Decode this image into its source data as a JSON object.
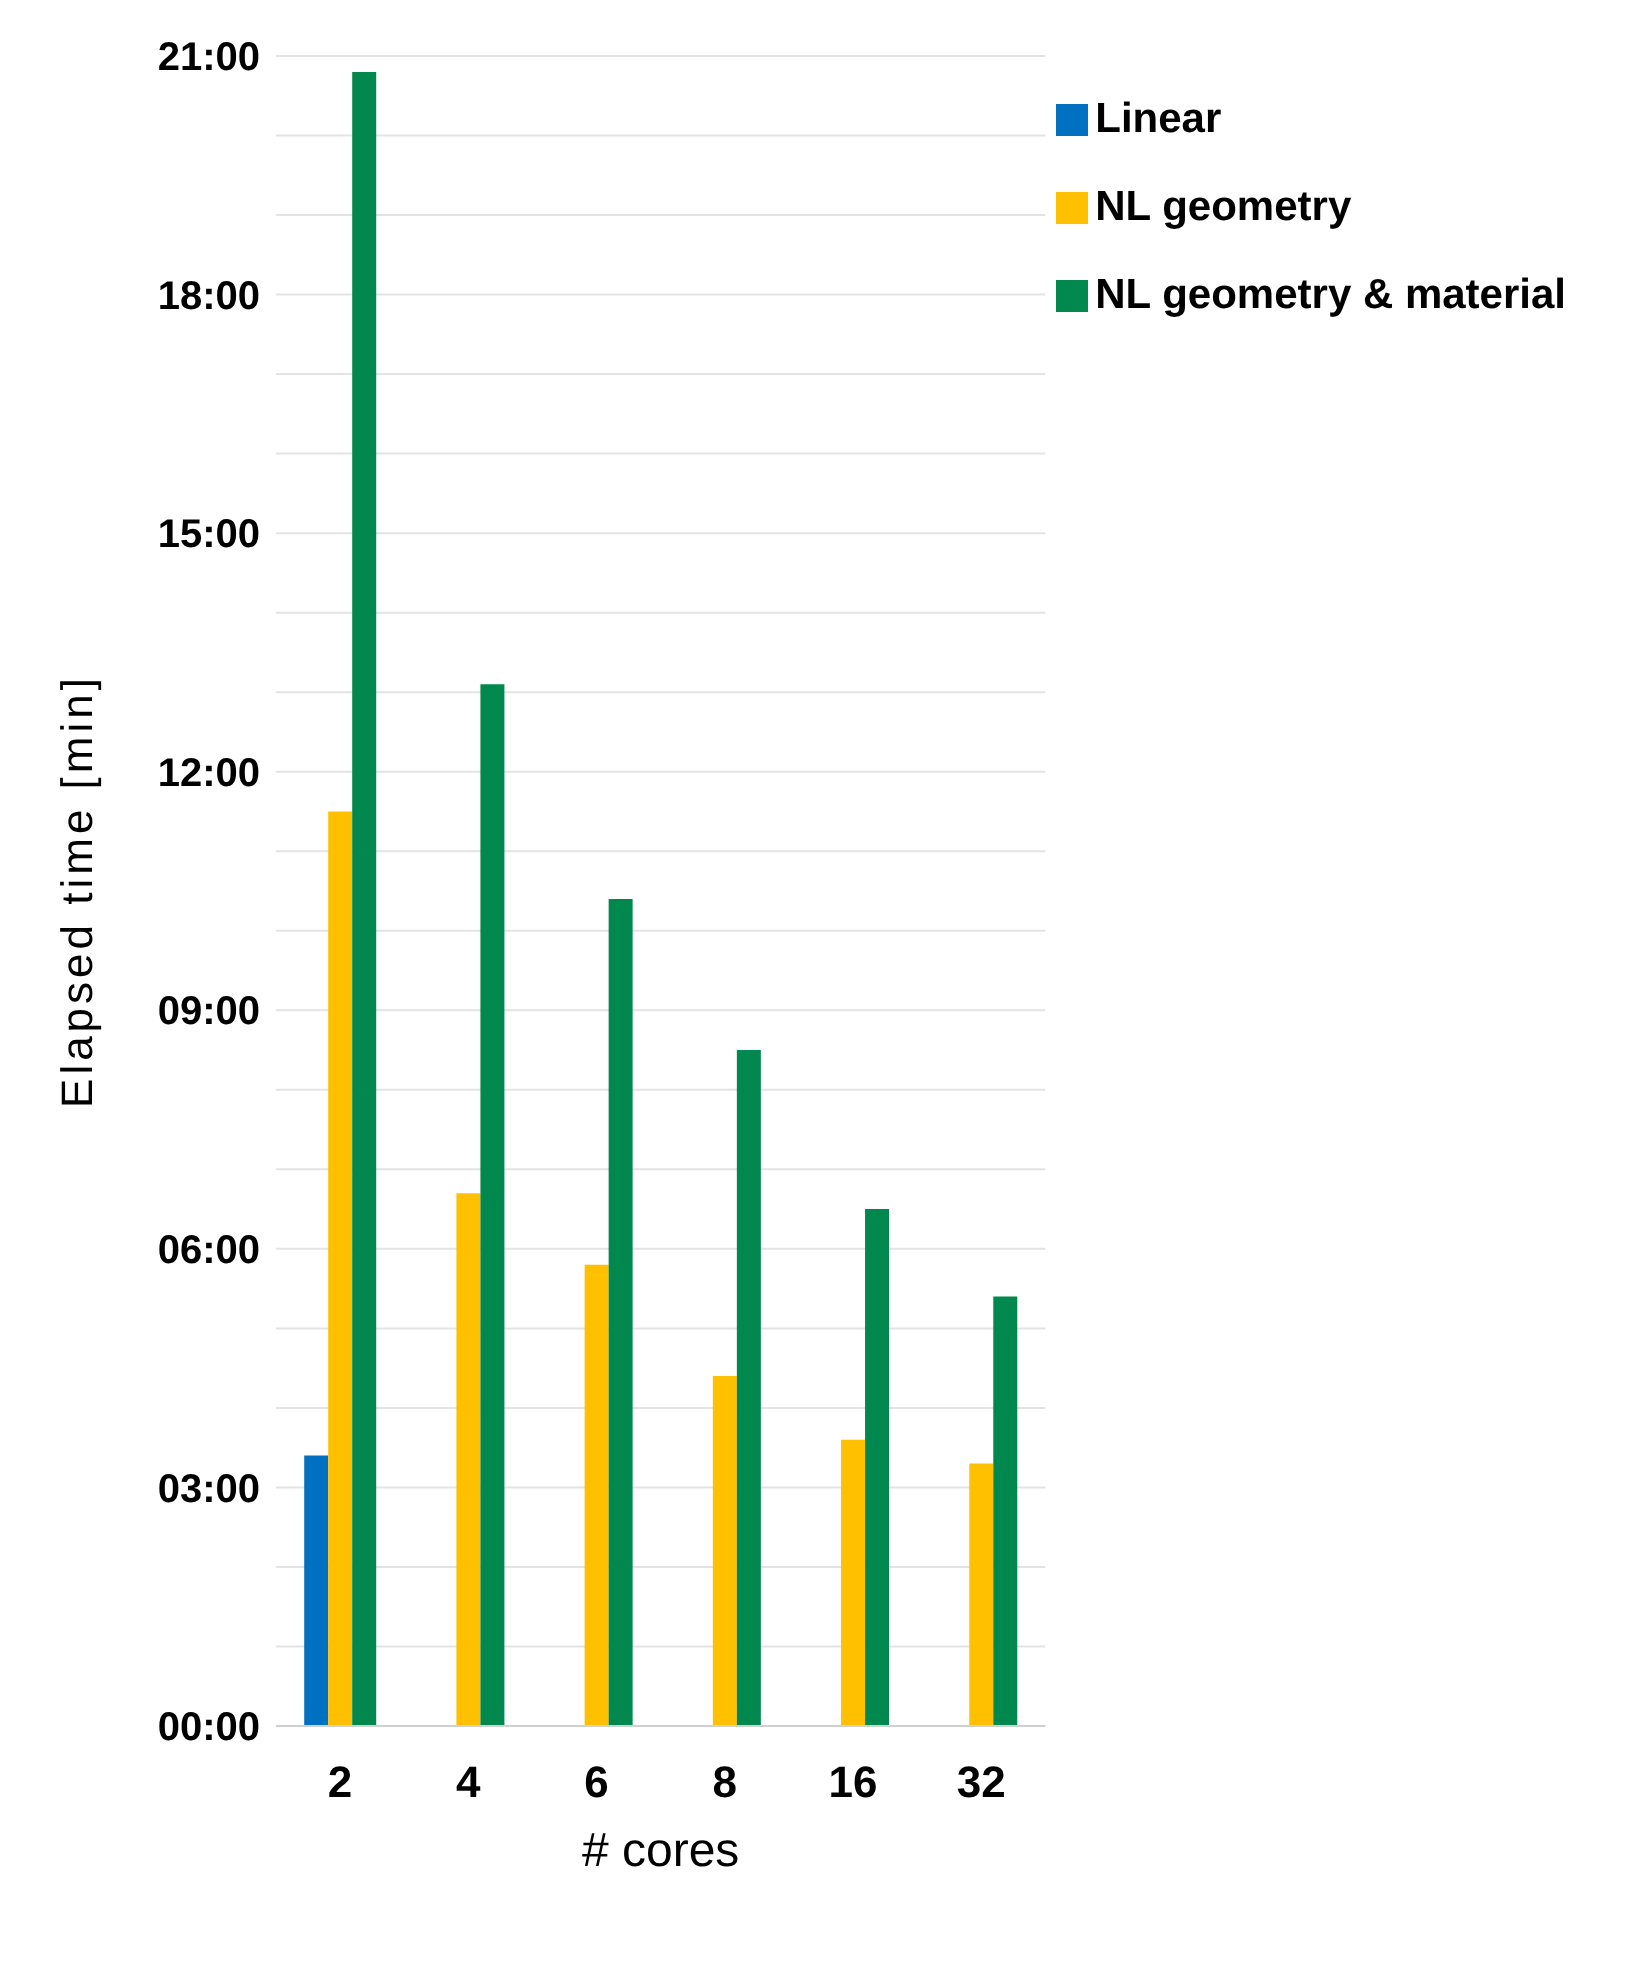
{
  "chart_data": {
    "type": "bar",
    "xlabel": "# cores",
    "ylabel": "Elapsed time [min]",
    "categories": [
      "2",
      "4",
      "6",
      "8",
      "16",
      "32"
    ],
    "series": [
      {
        "name": "Linear",
        "color": "#0070c0",
        "values": [
          3.4,
          null,
          null,
          null,
          null,
          null
        ]
      },
      {
        "name": "NL geometry",
        "color": "#ffc000",
        "values": [
          11.5,
          6.7,
          5.8,
          4.4,
          3.6,
          3.3
        ]
      },
      {
        "name": "NL geometry & material",
        "color": "#00884f",
        "values": [
          20.8,
          13.1,
          10.4,
          8.5,
          6.5,
          5.4
        ]
      }
    ],
    "ylim": [
      0,
      21
    ],
    "yticks": [
      {
        "value": 0,
        "label": "00:00"
      },
      {
        "value": 1,
        "label": null
      },
      {
        "value": 2,
        "label": null
      },
      {
        "value": 3,
        "label": "03:00"
      },
      {
        "value": 4,
        "label": null
      },
      {
        "value": 5,
        "label": null
      },
      {
        "value": 6,
        "label": "06:00"
      },
      {
        "value": 7,
        "label": null
      },
      {
        "value": 8,
        "label": null
      },
      {
        "value": 9,
        "label": "09:00"
      },
      {
        "value": 10,
        "label": null
      },
      {
        "value": 11,
        "label": null
      },
      {
        "value": 12,
        "label": "12:00"
      },
      {
        "value": 13,
        "label": null
      },
      {
        "value": 14,
        "label": null
      },
      {
        "value": 15,
        "label": "15:00"
      },
      {
        "value": 16,
        "label": null
      },
      {
        "value": 17,
        "label": null
      },
      {
        "value": 18,
        "label": "18:00"
      },
      {
        "value": 19,
        "label": null
      },
      {
        "value": 20,
        "label": null
      },
      {
        "value": 21,
        "label": "21:00"
      }
    ],
    "grid": "y",
    "legend": "top right"
  }
}
